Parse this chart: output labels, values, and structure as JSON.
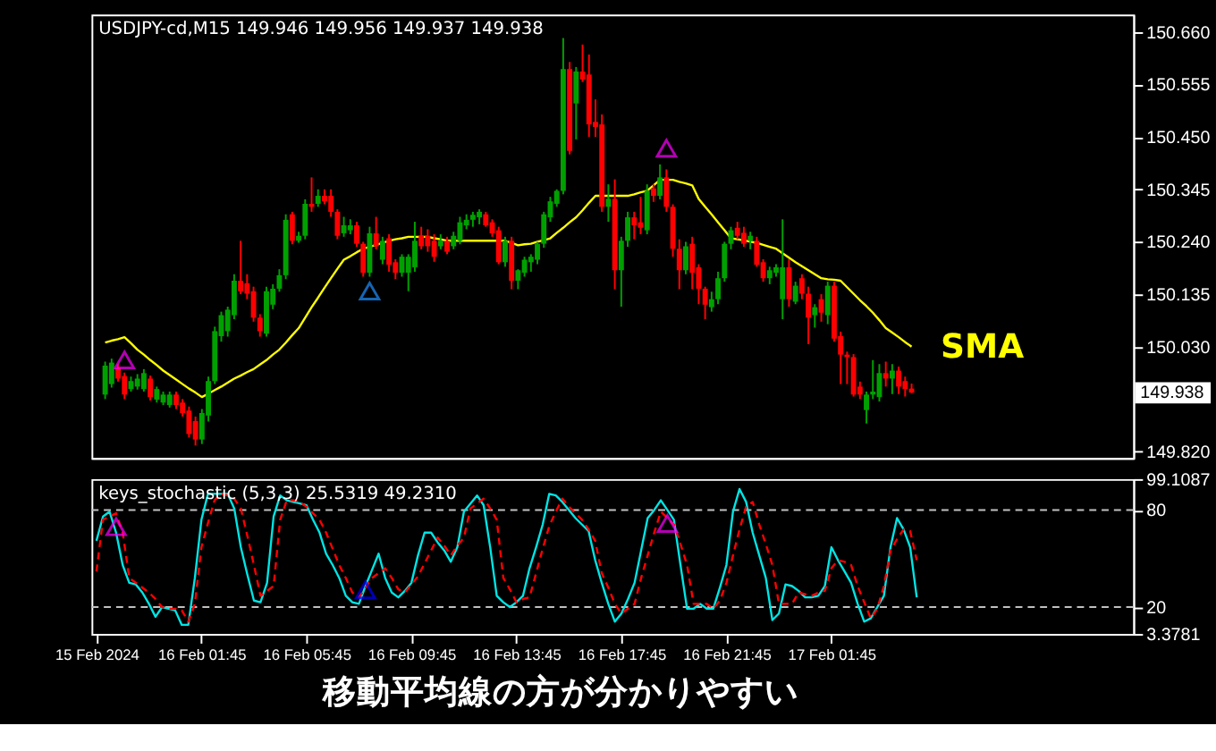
{
  "chart_data": [
    {
      "type": "candlestick",
      "title": "USDJPY-cd,M15  149.946 149.956 149.937 149.938",
      "ylim": [
        149.807,
        150.695
      ],
      "categories": [
        null,
        null,
        null,
        null,
        null,
        null,
        null,
        null,
        null,
        null,
        null,
        null,
        null,
        null,
        null,
        null,
        null,
        null,
        null,
        null,
        null,
        null,
        null,
        null,
        null,
        null,
        null,
        null,
        null,
        null,
        null,
        null,
        null,
        null,
        null,
        null,
        null,
        null,
        null,
        null,
        null,
        null,
        null,
        null,
        null,
        null,
        null,
        null,
        null,
        null,
        null,
        null,
        null,
        null,
        null,
        null,
        null,
        null,
        null,
        null,
        null,
        null,
        null,
        null,
        null,
        null,
        null,
        null,
        null,
        null,
        null,
        null,
        null,
        null,
        null,
        null,
        null,
        null,
        null,
        null,
        null,
        null,
        null,
        null,
        null,
        null,
        null,
        null,
        null,
        null,
        null,
        null,
        null,
        null,
        null,
        null,
        null,
        null,
        null,
        null,
        null,
        null,
        null,
        null,
        null,
        null,
        null,
        null,
        null,
        null,
        null,
        null,
        null,
        null,
        null,
        null,
        null,
        null,
        null,
        null,
        null,
        null,
        null,
        null,
        null,
        null
      ],
      "yticks": [
        {
          "value": 150.66,
          "label": "150.660"
        },
        {
          "value": 150.555,
          "label": "150.555"
        },
        {
          "value": 150.45,
          "label": "150.450"
        },
        {
          "value": 150.345,
          "label": "150.345"
        },
        {
          "value": 150.24,
          "label": "150.240"
        },
        {
          "value": 150.135,
          "label": "150.135"
        },
        {
          "value": 150.03,
          "label": "150.030"
        },
        {
          "value": 149.82,
          "label": "149.820"
        }
      ],
      "tick_labels": "y",
      "grid": false,
      "series": [
        {
          "colors": [
            "#00a000",
            "#00a000",
            "#ff0000",
            "#ff0000",
            "#00a000",
            "#00a000",
            "#00a000",
            "#ff0000",
            "#00a000",
            "#00a000",
            "#00a000",
            "#ff0000",
            "#ff0000",
            "#ff0000",
            "#ff0000",
            "#00a000",
            "#00a000",
            "#00a000",
            "#00a000",
            "#00a000",
            "#00a000",
            "#ff0000",
            "#ff0000",
            "#ff0000",
            "#ff0000",
            "#00a000",
            "#00a000",
            "#00a000",
            "#00a000",
            "#ff0000",
            "#00a000",
            "#00a000",
            "#ff0000",
            "#00a000",
            "#ff0000",
            "#ff0000",
            "#ff0000",
            "#00a000",
            "#00a000",
            "#ff0000",
            "#ff0000",
            "#00a000",
            "#ff0000",
            "#00a000",
            "#ff0000",
            "#ff0000",
            "#00a000",
            "#00a000",
            "#00a000",
            "#ff0000",
            "#ff0000",
            "#ff0000",
            "#00a000",
            "#ff0000",
            "#00a000",
            "#00a000",
            "#00a000",
            "#00a000",
            "#00a000",
            "#ff0000",
            "#ff0000",
            "#ff0000",
            "#00a000",
            "#ff0000",
            "#00a000",
            "#00a000",
            "#00a000",
            "#00a000",
            "#00a000",
            "#00a000",
            "#00a000",
            "#00a000",
            "#ff0000",
            "#00a000",
            "#ff0000",
            "#ff0000",
            "#ff0000",
            "#ff0000",
            "#00a000",
            "#ff0000",
            "#00a000",
            "#00a000",
            "#ff0000",
            "#ff0000",
            "#00a000",
            "#ff0000",
            "#00a000",
            "#ff0000",
            "#ff0000",
            "#ff0000",
            "#00a000",
            "#ff0000",
            "#ff0000",
            "#ff0000",
            "#00a000",
            "#00a000",
            "#00a000",
            "#00a000",
            "#ff0000",
            "#ff0000",
            "#00a000",
            "#ff0000",
            "#ff0000",
            "#00a000",
            "#00a000",
            "#00a000",
            "#ff0000",
            "#00a000",
            "#ff0000",
            "#ff0000",
            "#00a000",
            "#ff0000",
            "#00a000",
            "#ff0000",
            "#ff0000",
            "#ff0000",
            "#ff0000",
            "#ff0000",
            "#00a000",
            "#00a000",
            "#00a000",
            "#ff0000",
            "#00a000",
            "#ff0000",
            "#ff0000",
            "#ff0000"
          ],
          "ohlc": [
            [
              149.934,
              150.0,
              149.925,
              149.992
            ],
            [
              149.955,
              150.006,
              149.948,
              149.998
            ],
            [
              149.987,
              149.995,
              149.96,
              149.966
            ],
            [
              149.971,
              149.978,
              149.925,
              149.934
            ],
            [
              149.945,
              149.97,
              149.94,
              149.961
            ],
            [
              149.95,
              149.975,
              149.944,
              149.966
            ],
            [
              149.945,
              149.985,
              149.94,
              149.977
            ],
            [
              149.966,
              149.972,
              149.922,
              149.929
            ],
            [
              149.924,
              149.95,
              149.918,
              149.945
            ],
            [
              149.918,
              149.94,
              149.913,
              149.934
            ],
            [
              149.913,
              149.94,
              149.908,
              149.934
            ],
            [
              149.934,
              149.94,
              149.905,
              149.913
            ],
            [
              149.918,
              149.925,
              149.89,
              149.897
            ],
            [
              149.902,
              149.91,
              149.848,
              149.855
            ],
            [
              149.881,
              149.89,
              149.832,
              149.844
            ],
            [
              149.844,
              149.905,
              149.835,
              149.897
            ],
            [
              149.892,
              149.97,
              149.88,
              149.961
            ],
            [
              149.961,
              150.07,
              149.955,
              150.061
            ],
            [
              150.051,
              150.1,
              150.04,
              150.093
            ],
            [
              150.061,
              150.11,
              150.05,
              150.104
            ],
            [
              150.093,
              150.175,
              150.085,
              150.162
            ],
            [
              150.162,
              150.242,
              150.135,
              150.141
            ],
            [
              150.157,
              150.175,
              150.125,
              150.136
            ],
            [
              150.141,
              150.15,
              150.08,
              150.088
            ],
            [
              150.088,
              150.095,
              150.05,
              150.061
            ],
            [
              150.056,
              150.15,
              150.05,
              150.141
            ],
            [
              150.114,
              150.155,
              150.105,
              150.146
            ],
            [
              150.146,
              150.185,
              150.14,
              150.173
            ],
            [
              150.173,
              150.295,
              150.165,
              150.284
            ],
            [
              150.295,
              150.3,
              150.235,
              150.242
            ],
            [
              150.242,
              150.26,
              150.238,
              150.252
            ],
            [
              150.252,
              150.325,
              150.245,
              150.316
            ],
            [
              150.316,
              150.369,
              150.3,
              150.31
            ],
            [
              150.316,
              150.345,
              150.31,
              150.332
            ],
            [
              150.332,
              150.345,
              150.315,
              150.321
            ],
            [
              150.332,
              150.345,
              150.29,
              150.3
            ],
            [
              150.3,
              150.305,
              150.245,
              150.252
            ],
            [
              150.257,
              150.29,
              150.25,
              150.273
            ],
            [
              150.263,
              150.285,
              150.255,
              150.273
            ],
            [
              150.273,
              150.28,
              150.23,
              150.236
            ],
            [
              150.236,
              150.24,
              150.17,
              150.178
            ],
            [
              150.178,
              150.27,
              150.17,
              150.257
            ],
            [
              150.257,
              150.29,
              150.225,
              150.231
            ],
            [
              150.204,
              150.25,
              150.195,
              150.242
            ],
            [
              150.247,
              150.255,
              150.18,
              150.194
            ],
            [
              150.199,
              150.205,
              150.165,
              150.178
            ],
            [
              150.178,
              150.215,
              150.17,
              150.21
            ],
            [
              150.178,
              150.215,
              150.141,
              150.21
            ],
            [
              150.189,
              150.28,
              150.18,
              150.242
            ],
            [
              150.252,
              150.27,
              150.225,
              150.231
            ],
            [
              150.252,
              150.265,
              150.22,
              150.231
            ],
            [
              150.242,
              150.255,
              150.2,
              150.21
            ],
            [
              150.231,
              150.255,
              150.225,
              150.242
            ],
            [
              150.242,
              150.25,
              150.215,
              150.22
            ],
            [
              150.231,
              150.26,
              150.225,
              150.252
            ],
            [
              150.242,
              150.29,
              150.235,
              150.279
            ],
            [
              150.273,
              150.295,
              150.265,
              150.284
            ],
            [
              150.284,
              150.3,
              150.27,
              150.294
            ],
            [
              150.289,
              150.305,
              150.275,
              150.3
            ],
            [
              150.295,
              150.3,
              150.27,
              150.273
            ],
            [
              150.279,
              150.285,
              150.25,
              150.257
            ],
            [
              150.263,
              150.27,
              150.195,
              150.199
            ],
            [
              150.199,
              150.25,
              150.19,
              150.242
            ],
            [
              150.242,
              150.25,
              150.145,
              150.162
            ],
            [
              150.162,
              150.185,
              150.145,
              150.183
            ],
            [
              150.178,
              150.21,
              150.17,
              150.204
            ],
            [
              150.199,
              150.215,
              150.18,
              150.21
            ],
            [
              150.204,
              150.24,
              150.195,
              150.236
            ],
            [
              150.236,
              150.3,
              150.228,
              150.295
            ],
            [
              150.289,
              150.33,
              150.28,
              150.321
            ],
            [
              150.316,
              150.345,
              150.31,
              150.342
            ],
            [
              150.342,
              150.648,
              150.335,
              150.586
            ],
            [
              150.586,
              150.6,
              150.415,
              150.422
            ],
            [
              150.517,
              150.59,
              150.445,
              150.581
            ],
            [
              150.581,
              150.635,
              150.56,
              150.565
            ],
            [
              150.575,
              150.615,
              150.45,
              150.475
            ],
            [
              150.48,
              150.525,
              150.45,
              150.47
            ],
            [
              150.475,
              150.495,
              150.3,
              150.31
            ],
            [
              150.31,
              150.355,
              150.28,
              150.326
            ],
            [
              150.326,
              150.365,
              150.145,
              150.183
            ],
            [
              150.183,
              150.25,
              150.11,
              150.242
            ],
            [
              150.242,
              150.3,
              150.23,
              150.289
            ],
            [
              150.289,
              150.3,
              150.245,
              150.273
            ],
            [
              150.279,
              150.33,
              150.255,
              150.268
            ],
            [
              150.263,
              150.355,
              150.255,
              150.342
            ],
            [
              150.347,
              150.355,
              150.32,
              150.332
            ],
            [
              150.332,
              150.395,
              150.325,
              150.369
            ],
            [
              150.369,
              150.385,
              150.3,
              150.31
            ],
            [
              150.31,
              150.315,
              150.21,
              150.226
            ],
            [
              150.226,
              150.245,
              150.145,
              150.183
            ],
            [
              150.183,
              150.24,
              150.175,
              150.231
            ],
            [
              150.236,
              150.25,
              150.145,
              150.178
            ],
            [
              150.189,
              150.195,
              150.115,
              150.146
            ],
            [
              150.146,
              150.15,
              150.085,
              150.114
            ],
            [
              150.109,
              150.14,
              150.1,
              150.125
            ],
            [
              150.125,
              150.18,
              150.115,
              150.167
            ],
            [
              150.167,
              150.24,
              150.16,
              150.236
            ],
            [
              150.236,
              150.27,
              150.225,
              150.263
            ],
            [
              150.268,
              150.28,
              150.245,
              150.252
            ],
            [
              150.258,
              150.27,
              150.23,
              150.236
            ],
            [
              150.242,
              150.26,
              150.225,
              150.252
            ],
            [
              150.242,
              150.25,
              150.19,
              150.194
            ],
            [
              150.199,
              150.205,
              150.16,
              150.167
            ],
            [
              150.167,
              150.19,
              150.155,
              150.183
            ],
            [
              150.178,
              150.195,
              150.17,
              150.189
            ],
            [
              150.125,
              150.285,
              150.085,
              150.189
            ],
            [
              150.189,
              150.205,
              150.11,
              150.125
            ],
            [
              150.12,
              150.16,
              150.115,
              150.152
            ],
            [
              150.167,
              150.175,
              150.125,
              150.136
            ],
            [
              150.136,
              150.15,
              150.035,
              150.088
            ],
            [
              150.093,
              150.115,
              150.068,
              150.109
            ],
            [
              150.125,
              150.135,
              150.08,
              150.098
            ],
            [
              150.093,
              150.16,
              150.075,
              150.152
            ],
            [
              150.152,
              150.16,
              150.04,
              150.046
            ],
            [
              150.051,
              150.06,
              149.955,
              150.014
            ],
            [
              150.014,
              150.02,
              149.955,
              150.009
            ],
            [
              150.009,
              150.015,
              149.93,
              149.934
            ],
            [
              149.95,
              149.96,
              149.925,
              149.934
            ],
            [
              149.903,
              149.94,
              149.876,
              149.934
            ],
            [
              149.934,
              150.003,
              149.925,
              149.94
            ],
            [
              149.929,
              149.995,
              149.92,
              149.977
            ],
            [
              149.977,
              150.0,
              149.95,
              149.966
            ],
            [
              149.966,
              149.995,
              149.935,
              149.982
            ],
            [
              149.982,
              149.99,
              149.935,
              149.95
            ],
            [
              149.961,
              149.97,
              149.93,
              149.945
            ],
            [
              149.946,
              149.956,
              149.937,
              149.938
            ]
          ]
        },
        {
          "type": "line",
          "color": "#ffff00",
          "values": [
            150.038,
            150.042,
            150.045,
            150.049,
            150.037,
            150.024,
            150.014,
            150.003,
            149.993,
            149.982,
            149.973,
            149.964,
            149.955,
            149.946,
            149.938,
            149.929,
            149.936,
            149.943,
            149.95,
            149.958,
            149.966,
            149.972,
            149.979,
            149.985,
            149.994,
            150.003,
            150.014,
            150.024,
            150.038,
            150.053,
            150.067,
            150.088,
            150.109,
            150.128,
            150.148,
            150.167,
            150.186,
            150.204,
            150.211,
            150.219,
            150.226,
            150.23,
            150.234,
            150.238,
            150.242,
            150.245,
            150.247,
            150.25,
            150.25,
            150.25,
            150.25,
            150.247,
            150.245,
            150.242,
            150.242,
            150.242,
            150.242,
            150.242,
            150.242,
            150.242,
            150.242,
            150.242,
            150.242,
            150.238,
            150.233,
            150.235,
            150.236,
            150.24,
            150.243,
            150.247,
            150.258,
            150.268,
            150.279,
            150.289,
            150.303,
            150.318,
            150.332,
            150.332,
            150.332,
            150.332,
            150.332,
            150.332,
            150.335,
            150.339,
            150.342,
            150.353,
            150.364,
            150.364,
            150.364,
            150.36,
            150.357,
            150.353,
            150.326,
            150.31,
            150.295,
            150.279,
            150.263,
            150.247,
            150.245,
            150.243,
            150.24,
            150.238,
            150.234,
            150.23,
            150.226,
            150.217,
            150.208,
            150.199,
            150.191,
            150.183,
            150.175,
            150.167,
            150.165,
            150.164,
            150.162,
            150.149,
            150.136,
            150.123,
            150.111,
            150.098,
            150.083,
            150.067,
            150.058,
            150.049,
            150.039,
            150.03
          ]
        },
        {
          "type": "scatter",
          "color": "#ff00ff",
          "marker": "triangle",
          "values": [
            null,
            null,
            null,
            149.998,
            null,
            null,
            null,
            null,
            null,
            null,
            null,
            null,
            null,
            null,
            null,
            null,
            null,
            null,
            null,
            null,
            null,
            null,
            null,
            null,
            null,
            null,
            null,
            null,
            null,
            null,
            null,
            null,
            null,
            null,
            null,
            null,
            null,
            null,
            null,
            null,
            null,
            null,
            null,
            null,
            null,
            null,
            null,
            null,
            null,
            null,
            null,
            null,
            null,
            null,
            null,
            null,
            null,
            null,
            null,
            null,
            null,
            null,
            null,
            null,
            null,
            null,
            null,
            null,
            null,
            null,
            null,
            null,
            null,
            null,
            null,
            null,
            null,
            null,
            null,
            null,
            null,
            null,
            null,
            null,
            null,
            null,
            null,
            150.422,
            null,
            null,
            null,
            null,
            null,
            null,
            null,
            null,
            null,
            null,
            null,
            null,
            null,
            null,
            null,
            null,
            null,
            null,
            null,
            null,
            null,
            null,
            null,
            null,
            null,
            null,
            null,
            null,
            null,
            null,
            null,
            null,
            null,
            null,
            null,
            null,
            null,
            null
          ]
        },
        {
          "type": "scatter",
          "color": "#1e90ff",
          "marker": "triangle",
          "values": [
            null,
            null,
            null,
            null,
            null,
            null,
            null,
            null,
            null,
            null,
            null,
            null,
            null,
            null,
            null,
            null,
            null,
            null,
            null,
            null,
            null,
            null,
            null,
            null,
            null,
            null,
            null,
            null,
            null,
            null,
            null,
            null,
            null,
            null,
            null,
            null,
            null,
            null,
            null,
            null,
            null,
            150.136,
            null,
            null,
            null,
            null,
            null,
            null,
            null,
            null,
            null,
            null,
            null,
            null,
            null,
            null,
            null,
            null,
            null,
            null,
            null,
            null,
            null,
            null,
            null,
            null,
            null,
            null,
            null,
            null,
            null,
            null,
            null,
            null,
            null,
            null,
            null,
            null,
            null,
            null,
            null,
            null,
            null,
            null,
            null,
            null,
            null,
            null,
            null,
            null,
            null,
            null,
            null,
            null,
            null,
            null,
            null,
            null,
            null,
            null,
            null,
            null,
            null,
            null,
            null,
            null,
            null,
            null,
            null,
            null,
            null,
            null,
            null,
            null,
            null,
            null,
            null,
            null,
            null,
            null,
            null,
            null,
            null,
            null,
            null,
            null
          ]
        }
      ],
      "annotations": [
        "SMA",
        "149.938"
      ]
    },
    {
      "type": "line",
      "title": "keys_stochastic (5,3,3) 25.5319 49.2310",
      "ylim": [
        3.3781,
        99.1087
      ],
      "categories": [
        "15 Feb 2024",
        null,
        null,
        null,
        null,
        null,
        null,
        null,
        null,
        null,
        null,
        null,
        null,
        null,
        null,
        null,
        "16 Feb 01:45",
        null,
        null,
        null,
        null,
        null,
        null,
        null,
        null,
        null,
        null,
        null,
        null,
        null,
        null,
        null,
        "16 Feb 05:45",
        null,
        null,
        null,
        null,
        null,
        null,
        null,
        null,
        null,
        null,
        null,
        null,
        null,
        null,
        null,
        "16 Feb 09:45",
        null,
        null,
        null,
        null,
        null,
        null,
        null,
        null,
        null,
        null,
        null,
        null,
        null,
        null,
        null,
        "16 Feb 13:45",
        null,
        null,
        null,
        null,
        null,
        null,
        null,
        null,
        null,
        null,
        null,
        null,
        null,
        null,
        null,
        "16 Feb 17:45",
        null,
        null,
        null,
        null,
        null,
        null,
        null,
        null,
        null,
        null,
        null,
        null,
        null,
        null,
        null,
        "16 Feb 21:45",
        null,
        null,
        null,
        null,
        null,
        null,
        null,
        null,
        null,
        null,
        null,
        null,
        null,
        null,
        null,
        "17 Feb 01:45",
        null,
        null,
        null,
        null,
        null,
        null,
        null,
        null,
        null,
        null,
        null,
        null,
        null
      ],
      "yticks": [
        99.1087,
        80,
        20,
        3.3781
      ],
      "grid": false,
      "ref_lines": [
        {
          "axis": "y",
          "value": 80,
          "color": "#c0c0c0",
          "line_style": "dashed"
        },
        {
          "axis": "y",
          "value": 20,
          "color": "#c0c0c0",
          "line_style": "dashed"
        }
      ],
      "series": [
        {
          "color": "#00e5e5",
          "line_style": "solid",
          "values": [
            61,
            76,
            79,
            66,
            46,
            35,
            34,
            29,
            22,
            14,
            20,
            19,
            18,
            9,
            9,
            38,
            74,
            90,
            90,
            90,
            90,
            81,
            57,
            40,
            24,
            23,
            35,
            76,
            89,
            86,
            85,
            84,
            83,
            74,
            66,
            53,
            46,
            38,
            27,
            23,
            22,
            33,
            43,
            53,
            38,
            29,
            26,
            30,
            35,
            52,
            66,
            66,
            60,
            55,
            48,
            57,
            79,
            84,
            89,
            83,
            57,
            27,
            23,
            20,
            23,
            27,
            44,
            57,
            71,
            90,
            89,
            85,
            80,
            75,
            71,
            67,
            49,
            35,
            22,
            11,
            16,
            25,
            35,
            55,
            75,
            80,
            86,
            80,
            74,
            46,
            19,
            19,
            22,
            19,
            19,
            32,
            46,
            79,
            93,
            85,
            66,
            52,
            38,
            12,
            16,
            34,
            33,
            30,
            26,
            26,
            27,
            33,
            57,
            49,
            42,
            35,
            22,
            11,
            13,
            20,
            27,
            57,
            75,
            68,
            57,
            26
          ]
        },
        {
          "color": "#ff0000",
          "line_style": "dashed",
          "values": [
            42,
            74,
            76,
            78,
            66,
            38,
            35,
            32,
            29,
            25,
            20,
            19,
            19,
            18,
            11,
            22,
            57,
            72,
            86,
            90,
            89,
            87,
            81,
            64,
            46,
            27,
            30,
            33,
            74,
            86,
            86,
            85,
            82,
            78,
            74,
            66,
            56,
            46,
            38,
            29,
            26,
            32,
            38,
            41,
            44,
            38,
            31,
            29,
            34,
            39,
            47,
            55,
            63,
            58,
            52,
            58,
            63,
            81,
            84,
            87,
            81,
            74,
            38,
            31,
            23,
            25,
            26,
            41,
            56,
            70,
            79,
            87,
            82,
            78,
            74,
            68,
            61,
            41,
            32,
            22,
            16,
            19,
            22,
            38,
            52,
            66,
            79,
            75,
            71,
            59,
            46,
            22,
            22,
            22,
            19,
            24,
            35,
            52,
            68,
            82,
            85,
            71,
            59,
            46,
            22,
            22,
            22,
            29,
            28,
            27,
            29,
            30,
            44,
            49,
            48,
            46,
            33,
            23,
            13,
            19,
            33,
            55,
            62,
            68,
            67,
            49
          ]
        },
        {
          "type": "scatter",
          "color": "#ff00ff",
          "marker": "triangle",
          "values": [
            null,
            null,
            null,
            68,
            null,
            null,
            null,
            null,
            null,
            null,
            null,
            null,
            null,
            null,
            null,
            null,
            null,
            null,
            null,
            null,
            null,
            null,
            null,
            null,
            null,
            null,
            null,
            null,
            null,
            null,
            null,
            null,
            null,
            null,
            null,
            null,
            null,
            null,
            null,
            null,
            null,
            null,
            null,
            null,
            null,
            null,
            null,
            null,
            null,
            null,
            null,
            null,
            null,
            null,
            null,
            null,
            null,
            null,
            null,
            null,
            null,
            null,
            null,
            null,
            null,
            null,
            null,
            null,
            null,
            null,
            null,
            null,
            null,
            null,
            null,
            null,
            null,
            null,
            null,
            null,
            null,
            null,
            null,
            null,
            null,
            null,
            null,
            70,
            null,
            null,
            null,
            null,
            null,
            null,
            null,
            null,
            null,
            null,
            null,
            null,
            null,
            null,
            null,
            null,
            null,
            null,
            null,
            null,
            null,
            null,
            null,
            null,
            null,
            null,
            null,
            null,
            null,
            null,
            null,
            null,
            null,
            null,
            null,
            null,
            null,
            null
          ]
        },
        {
          "type": "scatter",
          "color": "#0000ff",
          "marker": "triangle",
          "values": [
            null,
            null,
            null,
            null,
            null,
            null,
            null,
            null,
            null,
            null,
            null,
            null,
            null,
            null,
            null,
            null,
            null,
            null,
            null,
            null,
            null,
            null,
            null,
            null,
            null,
            null,
            null,
            null,
            null,
            null,
            null,
            null,
            null,
            null,
            null,
            null,
            null,
            null,
            null,
            null,
            null,
            29,
            null,
            null,
            null,
            null,
            null,
            null,
            null,
            null,
            null,
            null,
            null,
            null,
            null,
            null,
            null,
            null,
            null,
            null,
            null,
            null,
            null,
            null,
            null,
            null,
            null,
            null,
            null,
            null,
            null,
            null,
            null,
            null,
            null,
            null,
            null,
            null,
            null,
            null,
            null,
            null,
            null,
            null,
            null,
            null,
            null,
            null,
            null,
            null,
            null,
            null,
            null,
            null,
            null,
            null,
            null,
            null,
            null,
            null,
            null,
            null,
            null,
            null,
            null,
            null,
            null,
            null,
            null,
            null,
            null,
            null,
            null,
            null,
            null,
            null,
            null,
            null,
            null,
            null,
            null,
            null,
            null,
            null,
            null,
            null
          ]
        }
      ],
      "annotations": [
        "移動平均線の方が分かりやすい"
      ]
    }
  ]
}
